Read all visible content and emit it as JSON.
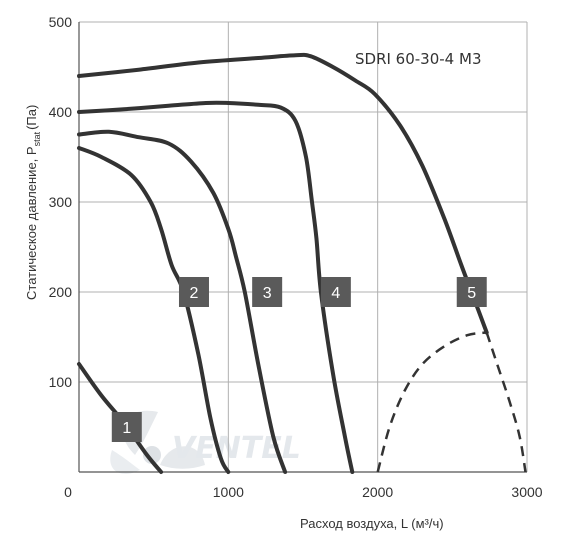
{
  "chart_data": {
    "type": "line",
    "title": "SDRI 60-30-4 M3",
    "xlabel": "Расход воздуха, L (м³/ч)",
    "ylabel_main": "Статическое давление, P",
    "ylabel_sub": "stat",
    "ylabel_unit": "(Па)",
    "xlim": [
      0,
      3000
    ],
    "ylim": [
      0,
      500
    ],
    "x_ticks": [
      "0",
      "1000",
      "2000",
      "3000"
    ],
    "y_ticks": [
      "100",
      "200",
      "300",
      "400",
      "500"
    ],
    "grid": true,
    "series": [
      {
        "name": "1",
        "label_at": [
          320,
          50
        ],
        "points": [
          [
            0,
            120
          ],
          [
            150,
            85
          ],
          [
            300,
            55
          ],
          [
            450,
            20
          ],
          [
            550,
            0
          ]
        ]
      },
      {
        "name": "2",
        "label_at": [
          770,
          200
        ],
        "points": [
          [
            0,
            360
          ],
          [
            150,
            350
          ],
          [
            350,
            330
          ],
          [
            480,
            300
          ],
          [
            550,
            270
          ],
          [
            620,
            230
          ],
          [
            700,
            200
          ],
          [
            800,
            130
          ],
          [
            880,
            60
          ],
          [
            950,
            15
          ],
          [
            1000,
            0
          ]
        ]
      },
      {
        "name": "3",
        "label_at": [
          1260,
          200
        ],
        "points": [
          [
            0,
            375
          ],
          [
            200,
            378
          ],
          [
            400,
            372
          ],
          [
            600,
            365
          ],
          [
            750,
            345
          ],
          [
            900,
            310
          ],
          [
            1000,
            270
          ],
          [
            1050,
            240
          ],
          [
            1110,
            200
          ],
          [
            1200,
            120
          ],
          [
            1300,
            40
          ],
          [
            1380,
            0
          ]
        ]
      },
      {
        "name": "4",
        "label_at": [
          1720,
          200
        ],
        "points": [
          [
            0,
            400
          ],
          [
            300,
            403
          ],
          [
            600,
            407
          ],
          [
            850,
            410
          ],
          [
            1000,
            410
          ],
          [
            1200,
            408
          ],
          [
            1350,
            405
          ],
          [
            1450,
            390
          ],
          [
            1520,
            350
          ],
          [
            1560,
            300
          ],
          [
            1590,
            260
          ],
          [
            1620,
            200
          ],
          [
            1700,
            110
          ],
          [
            1780,
            40
          ],
          [
            1830,
            0
          ]
        ]
      },
      {
        "name": "5",
        "label_at": [
          2630,
          200
        ],
        "points": [
          [
            0,
            440
          ],
          [
            400,
            447
          ],
          [
            800,
            455
          ],
          [
            1200,
            460
          ],
          [
            1450,
            463
          ],
          [
            1550,
            462
          ],
          [
            1700,
            450
          ],
          [
            1850,
            435
          ],
          [
            1980,
            420
          ],
          [
            2150,
            385
          ],
          [
            2300,
            340
          ],
          [
            2450,
            280
          ],
          [
            2560,
            230
          ],
          [
            2640,
            195
          ],
          [
            2730,
            155
          ]
        ]
      },
      {
        "name": "",
        "style": "dashed",
        "points": [
          [
            2730,
            155
          ],
          [
            2800,
            120
          ],
          [
            2880,
            80
          ],
          [
            2950,
            40
          ],
          [
            2990,
            0
          ]
        ]
      },
      {
        "name": "",
        "style": "dashed",
        "points": [
          [
            2000,
            0
          ],
          [
            2080,
            50
          ],
          [
            2180,
            90
          ],
          [
            2300,
            120
          ],
          [
            2450,
            140
          ],
          [
            2600,
            152
          ],
          [
            2730,
            155
          ]
        ]
      }
    ],
    "line_color": "#333333",
    "badge_color": "#5a5a5a",
    "grid_color": "#b0b0b0"
  },
  "watermark": {
    "text": "VENTEL",
    "color": "#e4e8ec"
  }
}
